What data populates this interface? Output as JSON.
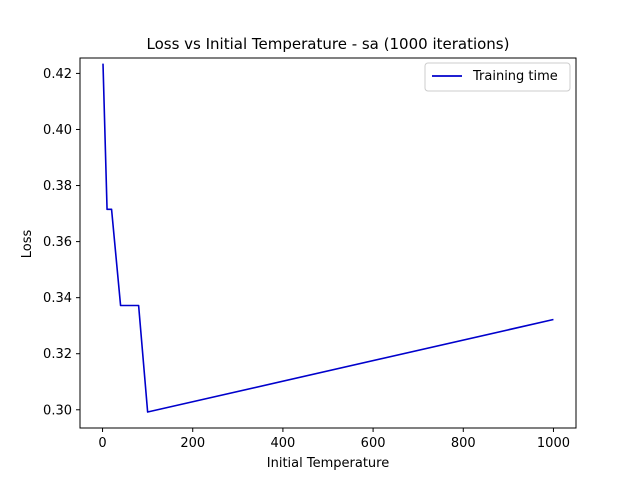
{
  "chart_data": {
    "type": "line",
    "title": "Loss vs Initial Temperature - sa (1000 iterations)",
    "xlabel": "Initial Temperature",
    "ylabel": "Loss",
    "xlim": [
      -50,
      1050
    ],
    "ylim": [
      0.2935,
      0.4255
    ],
    "x_ticks": [
      0,
      200,
      400,
      600,
      800,
      1000
    ],
    "x_tick_labels": [
      "0",
      "200",
      "400",
      "600",
      "800",
      "1000"
    ],
    "y_ticks": [
      0.3,
      0.32,
      0.34,
      0.36,
      0.38,
      0.4,
      0.42
    ],
    "y_tick_labels": [
      "0.30",
      "0.32",
      "0.34",
      "0.36",
      "0.38",
      "0.40",
      "0.42"
    ],
    "grid": false,
    "legend_position": "top-right",
    "series": [
      {
        "name": "Training time",
        "color": "#0000cc",
        "x": [
          1,
          10,
          20,
          40,
          80,
          100,
          1000
        ],
        "y": [
          0.4235,
          0.3715,
          0.3715,
          0.3372,
          0.3372,
          0.2992,
          0.3322
        ]
      }
    ]
  }
}
